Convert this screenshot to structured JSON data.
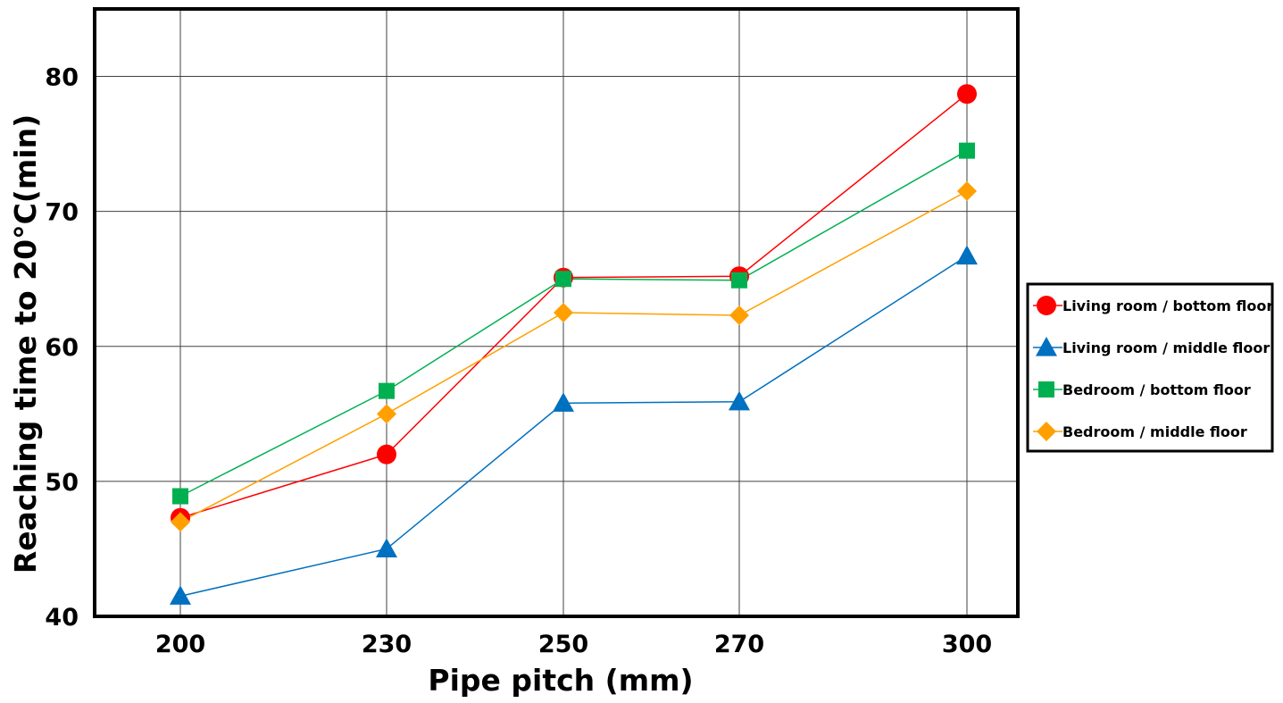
{
  "chart_data": {
    "type": "line",
    "title": "",
    "xlabel": "Pipe pitch (mm)",
    "ylabel": "Reaching time to 20°C(min)",
    "categories": [
      "200",
      "230",
      "250",
      "270",
      "300"
    ],
    "x": [
      200,
      230,
      250,
      270,
      300
    ],
    "ylim": [
      40,
      85
    ],
    "yticks": [
      40,
      50,
      60,
      70,
      80
    ],
    "grid": true,
    "legend_position": "right",
    "series": [
      {
        "name": "Living room / bottom floor",
        "color": "#ff0000",
        "marker": "circle",
        "values": [
          47.3,
          52.0,
          65.1,
          65.2,
          78.7
        ]
      },
      {
        "name": "Living room / middle floor",
        "color": "#0070c0",
        "marker": "triangle",
        "values": [
          41.5,
          45.0,
          55.8,
          55.9,
          66.7
        ]
      },
      {
        "name": "Bedroom / bottom floor",
        "color": "#00b050",
        "marker": "square",
        "values": [
          48.9,
          56.7,
          65.0,
          64.9,
          74.5
        ]
      },
      {
        "name": "Bedroom / middle floor",
        "color": "#ffa000",
        "marker": "diamond",
        "values": [
          47.0,
          55.0,
          62.5,
          62.3,
          71.5
        ]
      }
    ]
  }
}
